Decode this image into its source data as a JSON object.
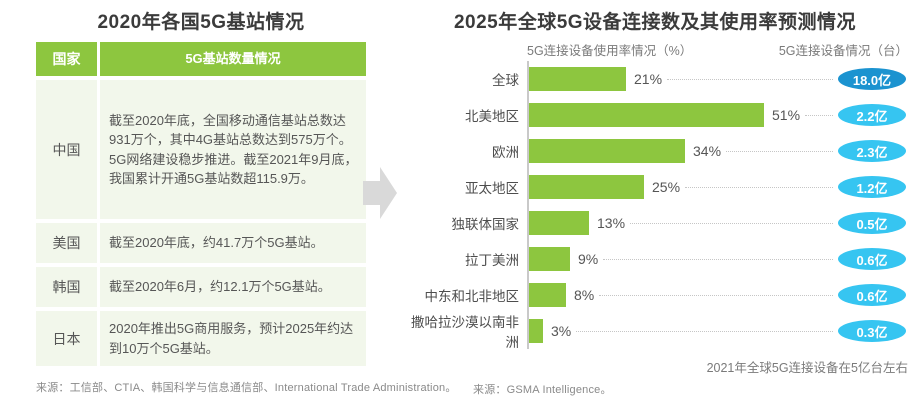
{
  "left_panel": {
    "title": "2020年各国5G基站情况",
    "table": {
      "headers": [
        "国家",
        "5G基站数量情况"
      ],
      "rows": [
        {
          "country": "中国",
          "desc": "截至2020年底，全国移动通信基站总数达931万个，其中4G基站总数达到575万个。5G网络建设稳步推进。截至2021年9月底，我国累计开通5G基站数超115.9万。"
        },
        {
          "country": "美国",
          "desc": "截至2020年底，约41.7万个5G基站。"
        },
        {
          "country": "韩国",
          "desc": "截至2020年6月，约12.1万个5G基站。"
        },
        {
          "country": "日本",
          "desc": "2020年推出5G商用服务，预计2025年约达到10万个5G基站。"
        }
      ]
    },
    "source": "来源：工信部、CTIA、韩国科学与信息通信部、International Trade Administration。"
  },
  "right_panel": {
    "title": "2025年全球5G设备连接数及其使用率预测情况",
    "axis_label_left": "5G连接设备使用率情况（%）",
    "axis_label_right": "5G连接设备情况（台）",
    "annotation": "2021年全球5G连接设备在5亿台左右",
    "source": "来源：GSMA Intelligence。"
  },
  "chart_data": {
    "type": "bar",
    "orientation": "horizontal",
    "title": "2025年全球5G设备连接数及其使用率预测情况",
    "categories": [
      "全球",
      "北美地区",
      "欧洲",
      "亚太地区",
      "独联体国家",
      "拉丁美洲",
      "中东和北非地区",
      "撒哈拉沙漠以南非洲"
    ],
    "series": [
      {
        "name": "5G连接设备使用率情况（%）",
        "unit": "%",
        "values": [
          21,
          51,
          34,
          25,
          13,
          9,
          8,
          3
        ]
      },
      {
        "name": "5G连接设备情况（台）",
        "unit": "亿台",
        "values": [
          18.0,
          2.2,
          2.3,
          1.2,
          0.5,
          0.6,
          0.6,
          0.3
        ]
      }
    ],
    "xlim": [
      0,
      55
    ],
    "grid": false,
    "legend_position": "top",
    "rows": [
      {
        "label": "全球",
        "value": 21,
        "pct": "21%",
        "badge": "18.0亿",
        "badge_color": "#1b93d0"
      },
      {
        "label": "北美地区",
        "value": 51,
        "pct": "51%",
        "badge": "2.2亿",
        "badge_color": "#36c5f1"
      },
      {
        "label": "欧洲",
        "value": 34,
        "pct": "34%",
        "badge": "2.3亿",
        "badge_color": "#36c5f1"
      },
      {
        "label": "亚太地区",
        "value": 25,
        "pct": "25%",
        "badge": "1.2亿",
        "badge_color": "#36c5f1"
      },
      {
        "label": "独联体国家",
        "value": 13,
        "pct": "13%",
        "badge": "0.5亿",
        "badge_color": "#36c5f1"
      },
      {
        "label": "拉丁美洲",
        "value": 9,
        "pct": "9%",
        "badge": "0.6亿",
        "badge_color": "#36c5f1"
      },
      {
        "label": "中东和北非地区",
        "value": 8,
        "pct": "8%",
        "badge": "0.6亿",
        "badge_color": "#36c5f1"
      },
      {
        "label": "撒哈拉沙漠以南非洲",
        "value": 3,
        "pct": "3%",
        "badge": "0.3亿",
        "badge_color": "#36c5f1"
      }
    ]
  },
  "colors": {
    "bar_green": "#8dc63f",
    "table_header_green": "#8dc63f",
    "table_row_bg": "#f2f7eb",
    "badge_dark_blue": "#1b93d0",
    "badge_light_blue": "#36c5f1",
    "arrow_gray": "#d9d9d9",
    "title_text": "#3b3b3b"
  }
}
